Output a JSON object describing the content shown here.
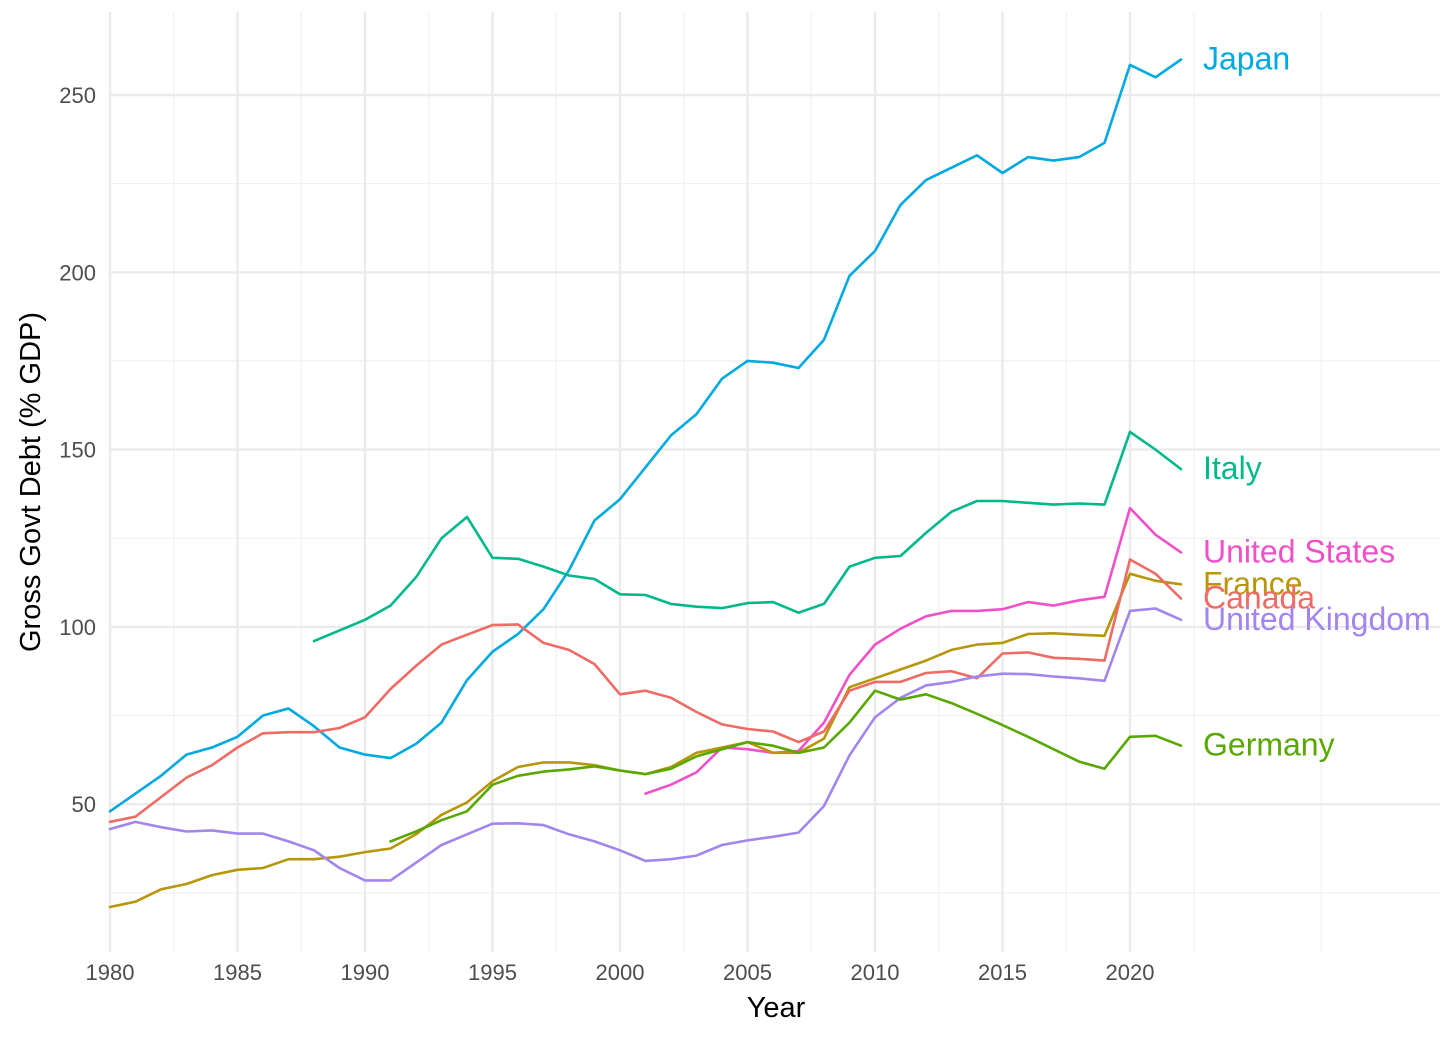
{
  "chart_data": {
    "type": "line",
    "title": "",
    "xlabel": "Year",
    "ylabel": "Gross Govt Debt (% GDP)",
    "xlim": [
      1980,
      2030
    ],
    "ylim": [
      12,
      272
    ],
    "x_ticks": [
      1980,
      1985,
      1990,
      1995,
      2000,
      2005,
      2010,
      2015,
      2020
    ],
    "y_ticks": [
      50,
      100,
      150,
      200,
      250
    ],
    "grid": true,
    "legend": "direct labels at right end of each line",
    "series": [
      {
        "name": "Japan",
        "color": "#00a9e0",
        "x": [
          1980,
          1981,
          1982,
          1983,
          1984,
          1985,
          1986,
          1987,
          1988,
          1989,
          1990,
          1991,
          1992,
          1993,
          1994,
          1995,
          1996,
          1997,
          1998,
          1999,
          2000,
          2001,
          2002,
          2003,
          2004,
          2005,
          2006,
          2007,
          2008,
          2009,
          2010,
          2011,
          2012,
          2013,
          2014,
          2015,
          2016,
          2017,
          2018,
          2019,
          2020,
          2021,
          2022
        ],
        "y": [
          48,
          53,
          58,
          64,
          66,
          69,
          75,
          77,
          72,
          66,
          64,
          63,
          67,
          73,
          85,
          93,
          98,
          105,
          116,
          130,
          136,
          145,
          154,
          160,
          170,
          175,
          174.5,
          173,
          181,
          199,
          206,
          219,
          226,
          229.5,
          233,
          228,
          232.5,
          231.5,
          232.5,
          236.5,
          258.5,
          255,
          260
        ]
      },
      {
        "name": "Italy",
        "color": "#00b88a",
        "x": [
          1988,
          1989,
          1990,
          1991,
          1992,
          1993,
          1994,
          1995,
          1996,
          1997,
          1998,
          1999,
          2000,
          2001,
          2002,
          2003,
          2004,
          2005,
          2006,
          2007,
          2008,
          2009,
          2010,
          2011,
          2012,
          2013,
          2014,
          2015,
          2016,
          2017,
          2018,
          2019,
          2020,
          2021,
          2022
        ],
        "y": [
          96,
          99,
          102,
          106,
          114,
          125,
          131,
          119.5,
          119.2,
          117,
          114.5,
          113.5,
          109.2,
          109,
          106.5,
          105.7,
          105.3,
          106.7,
          107,
          104,
          106.5,
          117,
          119.5,
          120,
          126.5,
          132.5,
          135.5,
          135.5,
          135,
          134.5,
          134.8,
          134.5,
          155,
          150,
          144.5
        ]
      },
      {
        "name": "United States",
        "color": "#f050c8",
        "x": [
          2001,
          2002,
          2003,
          2004,
          2005,
          2006,
          2007,
          2008,
          2009,
          2010,
          2011,
          2012,
          2013,
          2014,
          2015,
          2016,
          2017,
          2018,
          2019,
          2020,
          2021,
          2022
        ],
        "y": [
          53,
          55.5,
          59,
          66,
          65.5,
          64.5,
          65,
          73,
          86.5,
          95,
          99.5,
          103,
          104.5,
          104.5,
          105,
          107,
          106,
          107.5,
          108.5,
          133.5,
          126,
          121
        ]
      },
      {
        "name": "France",
        "color": "#b8960a",
        "x": [
          1980,
          1981,
          1982,
          1983,
          1984,
          1985,
          1986,
          1987,
          1988,
          1989,
          1990,
          1991,
          1992,
          1993,
          1994,
          1995,
          1996,
          1997,
          1998,
          1999,
          2000,
          2001,
          2002,
          2003,
          2004,
          2005,
          2006,
          2007,
          2008,
          2009,
          2010,
          2011,
          2012,
          2013,
          2014,
          2015,
          2016,
          2017,
          2018,
          2019,
          2020,
          2021,
          2022
        ],
        "y": [
          21,
          22.5,
          26,
          27.5,
          30,
          31.5,
          32,
          34.5,
          34.5,
          35.2,
          36.5,
          37.5,
          41.5,
          47,
          50.5,
          56.5,
          60.5,
          61.8,
          61.8,
          61,
          59.5,
          58.5,
          60.5,
          64.5,
          66,
          67.5,
          64.5,
          64.5,
          68.5,
          83,
          85.5,
          88,
          90.5,
          93.5,
          95,
          95.5,
          98,
          98.2,
          97.8,
          97.5,
          115,
          113,
          112
        ]
      },
      {
        "name": "Canada",
        "color": "#ee6b66",
        "x": [
          1980,
          1981,
          1982,
          1983,
          1984,
          1985,
          1986,
          1987,
          1988,
          1989,
          1990,
          1991,
          1992,
          1993,
          1994,
          1995,
          1996,
          1997,
          1998,
          1999,
          2000,
          2001,
          2002,
          2003,
          2004,
          2005,
          2006,
          2007,
          2008,
          2009,
          2010,
          2011,
          2012,
          2013,
          2014,
          2015,
          2016,
          2017,
          2018,
          2019,
          2020,
          2021,
          2022
        ],
        "y": [
          45,
          46.5,
          52,
          57.5,
          61,
          66,
          70,
          70.3,
          70.3,
          71.5,
          74.5,
          82.5,
          89,
          95,
          97.8,
          100.5,
          100.7,
          95.5,
          93.5,
          89.5,
          81,
          82,
          80,
          76,
          72.5,
          71.2,
          70.5,
          67.5,
          70.5,
          82,
          84.5,
          84.5,
          87,
          87.5,
          85.5,
          92.5,
          92.8,
          91.3,
          91,
          90.5,
          119,
          115,
          108
        ]
      },
      {
        "name": "United Kingdom",
        "color": "#a385ed",
        "x": [
          1980,
          1981,
          1982,
          1983,
          1984,
          1985,
          1986,
          1987,
          1988,
          1989,
          1990,
          1991,
          1992,
          1993,
          1994,
          1995,
          1996,
          1997,
          1998,
          1999,
          2000,
          2001,
          2002,
          2003,
          2004,
          2005,
          2006,
          2007,
          2008,
          2009,
          2010,
          2011,
          2012,
          2013,
          2014,
          2015,
          2016,
          2017,
          2018,
          2019,
          2020,
          2021,
          2022
        ],
        "y": [
          43,
          45,
          43.5,
          42.3,
          42.6,
          41.7,
          41.7,
          39.5,
          37,
          32,
          28.5,
          28.5,
          33.5,
          38.5,
          41.5,
          44.5,
          44.6,
          44.1,
          41.5,
          39.5,
          37,
          34,
          34.5,
          35.5,
          38.5,
          39.8,
          40.8,
          42,
          49.5,
          63.8,
          74.5,
          80,
          83.5,
          84.5,
          86,
          86.8,
          86.7,
          86,
          85.5,
          84.8,
          104.5,
          105.2,
          102
        ]
      },
      {
        "name": "Germany",
        "color": "#58a800",
        "x": [
          1991,
          1992,
          1993,
          1994,
          1995,
          1996,
          1997,
          1998,
          1999,
          2000,
          2001,
          2002,
          2003,
          2004,
          2005,
          2006,
          2007,
          2008,
          2009,
          2010,
          2011,
          2012,
          2013,
          2014,
          2015,
          2016,
          2017,
          2018,
          2019,
          2020,
          2021,
          2022
        ],
        "y": [
          39.5,
          42.3,
          45.5,
          48,
          55.5,
          58,
          59.2,
          59.8,
          60.7,
          59.5,
          58.5,
          60,
          63.5,
          65.5,
          67.5,
          66.5,
          64.5,
          66,
          73,
          82,
          79.5,
          81,
          78.5,
          75.5,
          72.3,
          69,
          65.5,
          62,
          60,
          69,
          69.3,
          66.5
        ]
      }
    ]
  }
}
